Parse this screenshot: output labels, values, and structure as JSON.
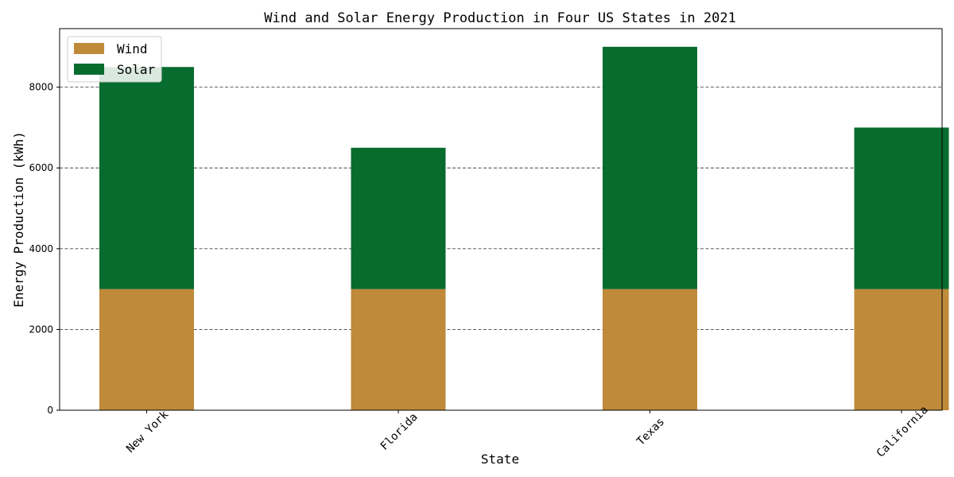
{
  "chart_data": {
    "type": "bar",
    "stacked": true,
    "title": "Wind and Solar Energy Production in Four US States in 2021",
    "xlabel": "State",
    "ylabel": "Energy Production (kWh)",
    "categories": [
      "New York",
      "Florida",
      "Texas",
      "California"
    ],
    "series": [
      {
        "name": "Wind",
        "values": [
          3000,
          3000,
          3000,
          3000
        ],
        "color": "#bf8a3a"
      },
      {
        "name": "Solar",
        "values": [
          5500,
          3500,
          6000,
          4000
        ],
        "color": "#086c2e"
      }
    ],
    "ylim": [
      0,
      9450
    ],
    "yticks": [
      0,
      2000,
      4000,
      6000,
      8000
    ],
    "grid": "horizontal dashed",
    "legend_position": "top-left"
  }
}
